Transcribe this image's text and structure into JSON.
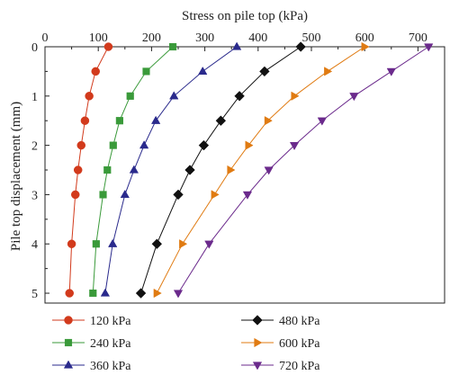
{
  "chart_data": {
    "type": "line",
    "xlabel": "Stress on pile top (kPa)",
    "ylabel": "Pile top displacement (mm)",
    "xaxis_position": "top",
    "yaxis_inverted": true,
    "xlim": [
      0,
      750
    ],
    "ylim": [
      0,
      5.2
    ],
    "xticks": [
      0,
      100,
      200,
      300,
      400,
      500,
      600,
      700
    ],
    "yticks": [
      0,
      1,
      2,
      3,
      4,
      5
    ],
    "y": [
      0,
      0.5,
      1,
      1.5,
      2,
      2.5,
      3,
      4,
      5
    ],
    "grid": false,
    "legend_position": "bottom",
    "series": [
      {
        "name": "120 kPa",
        "color": "#d23a1c",
        "marker": "circle",
        "x": [
          119,
          95,
          83,
          75,
          68,
          62,
          57,
          50,
          46
        ]
      },
      {
        "name": "240 kPa",
        "color": "#3a9a3a",
        "marker": "square",
        "x": [
          240,
          190,
          160,
          140,
          128,
          117,
          109,
          96,
          90
        ]
      },
      {
        "name": "360 kPa",
        "color": "#2a2a8c",
        "marker": "triangle-up",
        "x": [
          360,
          296,
          242,
          208,
          186,
          167,
          150,
          127,
          113
        ]
      },
      {
        "name": "480 kPa",
        "color": "#111111",
        "marker": "diamond",
        "x": [
          480,
          412,
          365,
          330,
          298,
          272,
          250,
          210,
          180
        ]
      },
      {
        "name": "600 kPa",
        "color": "#e07b12",
        "marker": "triangle-right",
        "x": [
          600,
          530,
          468,
          418,
          382,
          348,
          318,
          258,
          210
        ]
      },
      {
        "name": "720 kPa",
        "color": "#6b2a8c",
        "marker": "triangle-down",
        "x": [
          720,
          650,
          580,
          520,
          468,
          420,
          380,
          308,
          250
        ]
      }
    ]
  }
}
